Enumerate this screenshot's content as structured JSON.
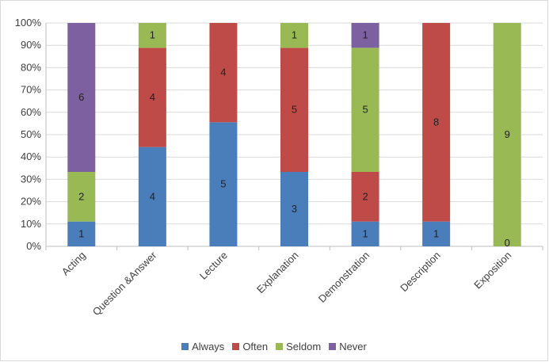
{
  "chart_data": {
    "type": "bar",
    "stacked": "percent",
    "categories": [
      "Acting",
      "Question &Answer",
      "Lecture",
      "Explanation",
      "Demonstration",
      "Description",
      "Exposition"
    ],
    "series": [
      {
        "name": "Always",
        "color": "#4a7ebb",
        "values": [
          1,
          4,
          5,
          3,
          1,
          1,
          0
        ]
      },
      {
        "name": "Often",
        "color": "#be4b48",
        "values": [
          0,
          4,
          4,
          5,
          2,
          8,
          0
        ]
      },
      {
        "name": "Seldom",
        "color": "#98b954",
        "values": [
          2,
          1,
          0,
          1,
          5,
          0,
          9
        ]
      },
      {
        "name": "Never",
        "color": "#7d60a0",
        "values": [
          6,
          0,
          0,
          0,
          1,
          0,
          0
        ]
      }
    ],
    "data_labels": [
      {
        "category": "Acting",
        "series": "Always",
        "text": "1"
      },
      {
        "category": "Acting",
        "series": "Seldom",
        "text": "2"
      },
      {
        "category": "Acting",
        "series": "Never",
        "text": "6"
      },
      {
        "category": "Question &Answer",
        "series": "Always",
        "text": "4"
      },
      {
        "category": "Question &Answer",
        "series": "Often",
        "text": "4"
      },
      {
        "category": "Question &Answer",
        "series": "Seldom",
        "text": "1"
      },
      {
        "category": "Lecture",
        "series": "Always",
        "text": "5"
      },
      {
        "category": "Lecture",
        "series": "Often",
        "text": "4"
      },
      {
        "category": "Explanation",
        "series": "Always",
        "text": "3"
      },
      {
        "category": "Explanation",
        "series": "Often",
        "text": "5"
      },
      {
        "category": "Explanation",
        "series": "Seldom",
        "text": "1"
      },
      {
        "category": "Demonstration",
        "series": "Always",
        "text": "1"
      },
      {
        "category": "Demonstration",
        "series": "Often",
        "text": "2"
      },
      {
        "category": "Demonstration",
        "series": "Seldom",
        "text": "5"
      },
      {
        "category": "Demonstration",
        "series": "Never",
        "text": "1"
      },
      {
        "category": "Description",
        "series": "Always",
        "text": "1"
      },
      {
        "category": "Description",
        "series": "Often",
        "text": "8"
      },
      {
        "category": "Exposition",
        "series": "Always",
        "text": "0"
      },
      {
        "category": "Exposition",
        "series": "Seldom",
        "text": "9"
      }
    ],
    "y_ticks": [
      "0%",
      "10%",
      "20%",
      "30%",
      "40%",
      "50%",
      "60%",
      "70%",
      "80%",
      "90%",
      "100%"
    ],
    "ylim": [
      0,
      100
    ],
    "grid": true,
    "legend_position": "bottom",
    "title": "",
    "xlabel": "",
    "ylabel": ""
  }
}
